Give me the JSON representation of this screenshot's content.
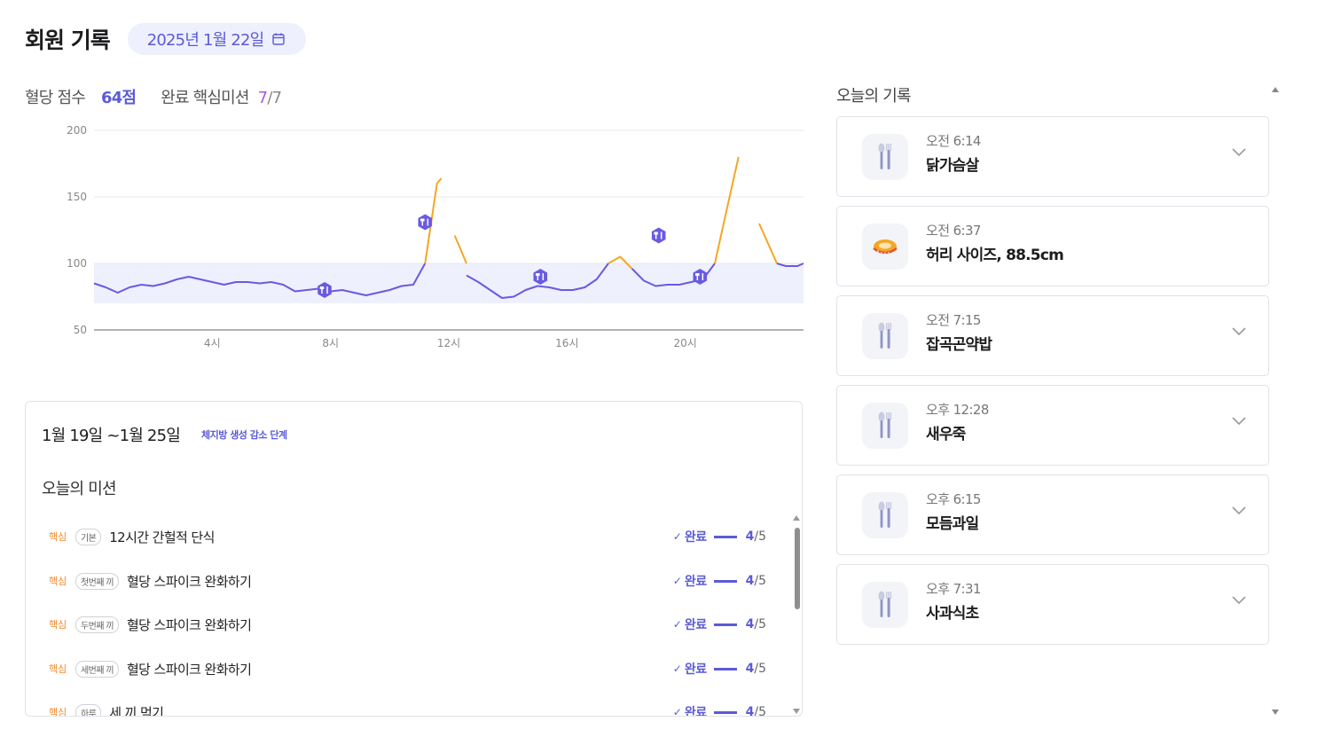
{
  "header": {
    "title": "회원 기록",
    "date": "2025년 1월 22일",
    "calendar_icon": "calendar-icon"
  },
  "score": {
    "label": "혈당 점수",
    "value": "64점",
    "mission_label": "완료 핵심미션",
    "mission_done": "7",
    "mission_total": "/7"
  },
  "chart_data": {
    "type": "line",
    "xlabel": "",
    "ylabel": "",
    "xlim": [
      0,
      24
    ],
    "ylim": [
      50,
      200
    ],
    "x_ticks": [
      4,
      8,
      12,
      16,
      20
    ],
    "x_tick_labels": [
      "4시",
      "8시",
      "12시",
      "16시",
      "20시"
    ],
    "y_ticks": [
      50,
      100,
      150,
      200
    ],
    "y_tick_labels": [
      "50",
      "100",
      "150",
      "200"
    ],
    "target_band": [
      70,
      100
    ],
    "colors": {
      "normal": "#6a5ae0",
      "high": "#f5a623",
      "band": "#eef0fd",
      "marker": "#6a5ae0"
    },
    "series": [
      {
        "segments": [
          [
            [
              0,
              85
            ],
            [
              0.4,
              82
            ],
            [
              0.8,
              78
            ],
            [
              1.2,
              82
            ],
            [
              1.6,
              84
            ],
            [
              2,
              83
            ],
            [
              2.4,
              85
            ],
            [
              2.8,
              88
            ],
            [
              3.2,
              90
            ],
            [
              3.6,
              88
            ],
            [
              4,
              86
            ],
            [
              4.4,
              84
            ],
            [
              4.8,
              86
            ],
            [
              5.2,
              86
            ],
            [
              5.6,
              85
            ],
            [
              6,
              86
            ],
            [
              6.4,
              84
            ],
            [
              6.8,
              79
            ],
            [
              7.2,
              80
            ],
            [
              7.6,
              81
            ],
            [
              8,
              79
            ],
            [
              8.4,
              80
            ],
            [
              8.8,
              78
            ],
            [
              9.2,
              76
            ],
            [
              9.6,
              78
            ],
            [
              10,
              80
            ],
            [
              10.4,
              83
            ],
            [
              10.8,
              84
            ],
            [
              11.2,
              100
            ]
          ],
          [
            [
              11.2,
              100
            ],
            [
              11.4,
              130
            ],
            [
              11.6,
              160
            ],
            [
              11.75,
              164
            ]
          ],
          [
            [
              12.2,
              121
            ],
            [
              12.6,
              100
            ]
          ],
          [
            [
              12.6,
              91
            ],
            [
              13,
              86
            ],
            [
              13.4,
              80
            ],
            [
              13.8,
              74
            ],
            [
              14.2,
              75
            ],
            [
              14.6,
              80
            ],
            [
              15,
              83
            ],
            [
              15.4,
              82
            ],
            [
              15.8,
              80
            ],
            [
              16.2,
              80
            ],
            [
              16.6,
              82
            ],
            [
              17,
              88
            ],
            [
              17.4,
              100
            ]
          ],
          [
            [
              17.4,
              100
            ],
            [
              17.8,
              105
            ],
            [
              18.2,
              96
            ]
          ],
          [
            [
              18.2,
              96
            ],
            [
              18.6,
              87
            ],
            [
              19,
              83
            ],
            [
              19.4,
              84
            ],
            [
              19.8,
              84
            ],
            [
              20.2,
              86
            ],
            [
              20.6,
              88
            ],
            [
              21,
              100
            ]
          ],
          [
            [
              21,
              100
            ],
            [
              21.4,
              140
            ],
            [
              21.8,
              180
            ]
          ],
          [
            [
              22.5,
              130
            ],
            [
              22.8,
              115
            ],
            [
              23.1,
              100
            ]
          ],
          [
            [
              23.1,
              100
            ],
            [
              23.4,
              98
            ],
            [
              23.8,
              98
            ],
            [
              24,
              100
            ]
          ]
        ]
      }
    ],
    "meal_markers_x": [
      7.8,
      11.2,
      15.1,
      19.1,
      20.5
    ],
    "meal_markers_y": [
      80,
      131,
      90,
      121,
      90
    ]
  },
  "week": {
    "title": "1월 19일 ~1월 25일",
    "stage": "체지방 생성 감소 단계"
  },
  "missions": {
    "title": "오늘의 미션",
    "items": [
      {
        "core": "핵심",
        "kind": "기본",
        "name": "12시간 간헐적 단식",
        "done": "완료",
        "count": "4",
        "total": "/5"
      },
      {
        "core": "핵심",
        "kind": "첫번째 끼",
        "name": "혈당 스파이크 완화하기",
        "done": "완료",
        "count": "4",
        "total": "/5"
      },
      {
        "core": "핵심",
        "kind": "두번째 끼",
        "name": "혈당 스파이크 완화하기",
        "done": "완료",
        "count": "4",
        "total": "/5"
      },
      {
        "core": "핵심",
        "kind": "세번째 끼",
        "name": "혈당 스파이크 완화하기",
        "done": "완료",
        "count": "4",
        "total": "/5"
      },
      {
        "core": "핵심",
        "kind": "하루",
        "name": "세 끼 먹기",
        "done": "완료",
        "count": "4",
        "total": "/5"
      }
    ]
  },
  "records": {
    "title": "오늘의 기록",
    "items": [
      {
        "time": "오전 6:14",
        "name": "닭가슴살",
        "icon": "meal-icon"
      },
      {
        "time": "오전 6:37",
        "name": "허리 사이즈, 88.5cm",
        "icon": "tape-measure-icon"
      },
      {
        "time": "오전 7:15",
        "name": "잡곡곤약밥",
        "icon": "meal-icon"
      },
      {
        "time": "오후 12:28",
        "name": "새우죽",
        "icon": "meal-icon"
      },
      {
        "time": "오후 6:15",
        "name": "모듬과일",
        "icon": "meal-icon"
      },
      {
        "time": "오후 7:31",
        "name": "사과식초",
        "icon": "meal-icon"
      }
    ]
  }
}
